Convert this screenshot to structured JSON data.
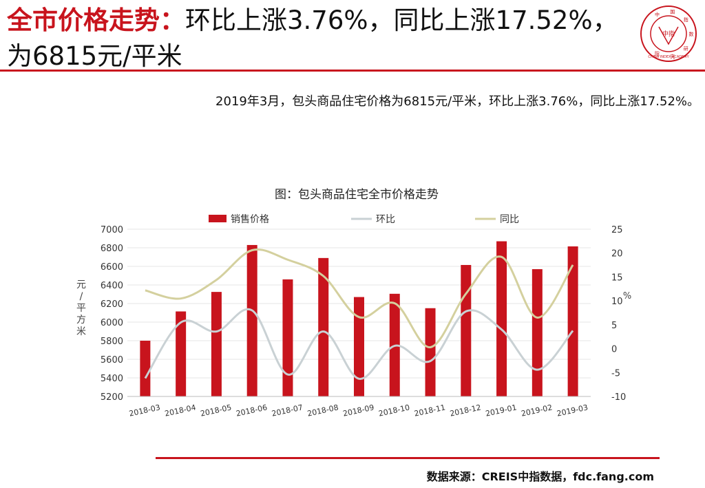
{
  "header": {
    "title_highlight": "全市价格走势：",
    "title_rest": "环比上涨3.76%，同比上涨17.52%，为6815元/平米"
  },
  "logo": {
    "name": "CHINA INDEX ACADEMY",
    "chars": "中国指数研究院",
    "center_chars": "中指"
  },
  "summary": "2019年3月，包头商品住宅价格为6815元/平米，环比上涨3.76%，同比上涨17.52%。",
  "source": "数据来源：CREIS中指数据，fdc.fang.com",
  "colors": {
    "accent": "#c8141d",
    "mom": "#c9d1d4",
    "yoy": "#d4d09e",
    "bar": "#c8141d"
  },
  "chart_data": {
    "type": "bar+line",
    "title": "图：包头商品住宅全市价格走势",
    "categories": [
      "2018-03",
      "2018-04",
      "2018-05",
      "2018-06",
      "2018-07",
      "2018-08",
      "2018-09",
      "2018-10",
      "2018-11",
      "2018-12",
      "2019-01",
      "2019-02",
      "2019-03"
    ],
    "series": [
      {
        "name": "销售价格",
        "type": "bar",
        "axis": "left",
        "values": [
          5800,
          6115,
          6325,
          6830,
          6460,
          6690,
          6270,
          6305,
          6150,
          6615,
          6870,
          6570,
          6815
        ]
      },
      {
        "name": "环比",
        "type": "line",
        "axis": "right",
        "values": [
          -6.2,
          5.5,
          3.6,
          8.0,
          -5.4,
          3.6,
          -6.3,
          0.6,
          -2.6,
          7.8,
          4.0,
          -4.4,
          3.76
        ]
      },
      {
        "name": "同比",
        "type": "line",
        "axis": "right",
        "values": [
          12.2,
          10.5,
          14.4,
          20.6,
          18.6,
          15.2,
          6.6,
          9.5,
          0.3,
          11.5,
          19.2,
          6.5,
          17.52
        ]
      }
    ],
    "ylabel_left": "元/平方米",
    "ylabel_right": "%",
    "ylim_left": [
      5200,
      7000
    ],
    "yticks_left": [
      5200,
      5400,
      5600,
      5800,
      6000,
      6200,
      6400,
      6600,
      6800,
      7000
    ],
    "ylim_right": [
      -10,
      25
    ],
    "yticks_right": [
      -10,
      -5,
      0,
      5,
      10,
      15,
      20,
      25
    ],
    "legend_position": "top"
  }
}
